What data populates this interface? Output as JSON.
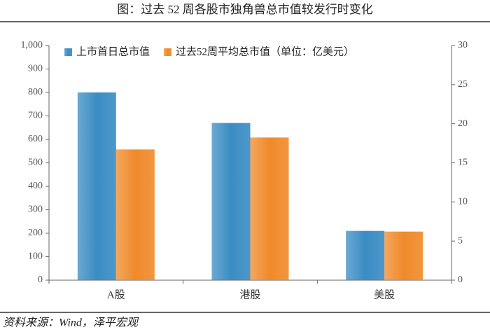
{
  "chart_data": {
    "type": "bar",
    "title": "图：过去 52 周各股市独角兽总市值较发行时变化",
    "source": "资料来源：Wind，泽平宏观",
    "categories": [
      "A股",
      "港股",
      "美股"
    ],
    "series": [
      {
        "name": "上市首日总市值",
        "color": "#3a8cc4",
        "values": [
          800,
          670,
          210
        ]
      },
      {
        "name": "过去52周平均总市值（单位：亿美元）",
        "color": "#f08a2a",
        "values": [
          557,
          608,
          207
        ]
      }
    ],
    "ylim": [
      0,
      1000
    ],
    "yticks": [
      0,
      100,
      200,
      300,
      400,
      500,
      600,
      700,
      800,
      900,
      {
        "value": 1000,
        "label": "1,000"
      }
    ],
    "y2lim": [
      0,
      30
    ],
    "y2ticks": [
      0,
      5,
      10,
      15,
      20,
      25,
      30
    ],
    "legend": "top-left",
    "grid": false
  }
}
